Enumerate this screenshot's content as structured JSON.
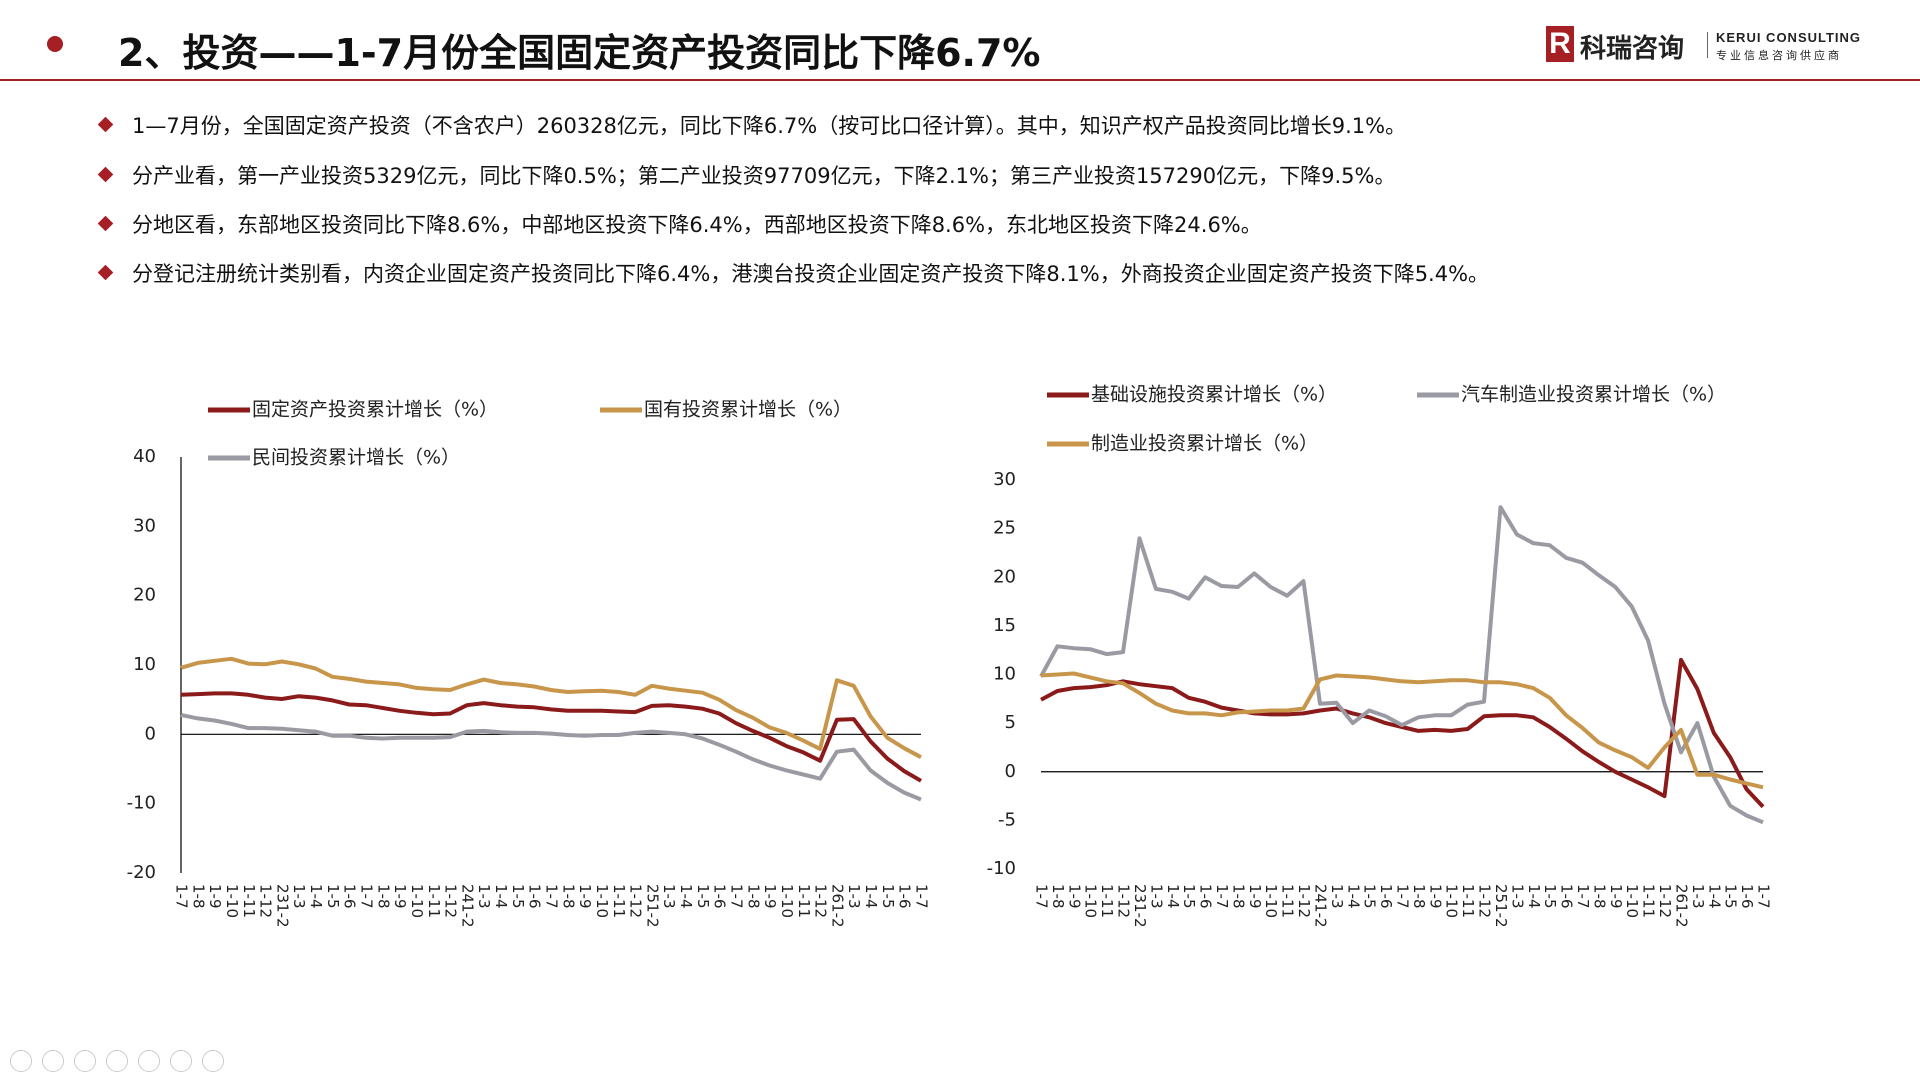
{
  "header": {
    "title": "2、投资——1-7月份全国固定资产投资同比下降6.7%",
    "logo_name": "科瑞咨询",
    "logo_en": "KERUI CONSULTING",
    "logo_tagline": "专业信息咨询供应商"
  },
  "bullets": [
    "1—7月份，全国固定资产投资（不含农户）260328亿元，同比下降6.7%（按可比口径计算）。其中，知识产权产品投资同比增长9.1%。",
    "分产业看，第一产业投资5329亿元，同比下降0.5%；第二产业投资97709亿元，下降2.1%；第三产业投资157290亿元，下降9.5%。",
    "分地区看，东部地区投资同比下降8.6%，中部地区投资下降6.4%，西部地区投资下降8.6%，东北地区投资下降24.6%。",
    "分登记注册统计类别看，内资企业固定资产投资同比下降6.4%，港澳台投资企业固定资产投资下降8.1%，外商投资企业固定资产投资下降5.4%。"
  ],
  "chart_data": [
    {
      "type": "line",
      "categories": [
        "1-7",
        "1-8",
        "1-9",
        "1-10",
        "1-11",
        "1-12",
        "231-2",
        "1-3",
        "1-4",
        "1-5",
        "1-6",
        "1-7",
        "1-8",
        "1-9",
        "1-10",
        "1-11",
        "1-12",
        "241-2",
        "1-3",
        "1-4",
        "1-5",
        "1-6",
        "1-7",
        "1-8",
        "1-9",
        "1-10",
        "1-11",
        "1-12",
        "251-2",
        "1-3",
        "1-4",
        "1-5",
        "1-6",
        "1-7",
        "1-8",
        "1-9",
        "1-10",
        "1-11",
        "1-12",
        "261-2",
        "1-3",
        "1-4",
        "1-5",
        "1-6",
        "1-7"
      ],
      "ylim": [
        -20,
        40
      ],
      "yticks": [
        -20,
        -10,
        0,
        10,
        20,
        30,
        40
      ],
      "series": [
        {
          "name": "固定资产投资累计增长（%）",
          "color": "#8b1a1a",
          "values": [
            5.7,
            5.8,
            5.9,
            5.9,
            5.7,
            5.3,
            5.1,
            5.5,
            5.3,
            4.9,
            4.3,
            4.2,
            3.8,
            3.4,
            3.1,
            2.9,
            3.0,
            4.2,
            4.5,
            4.2,
            4.0,
            3.9,
            3.6,
            3.4,
            3.4,
            3.4,
            3.3,
            3.2,
            4.1,
            4.2,
            4.0,
            3.7,
            3.0,
            1.6,
            0.5,
            -0.5,
            -1.7,
            -2.6,
            -3.8,
            2.1,
            2.2,
            -1.0,
            -3.5,
            -5.3,
            -6.7
          ]
        },
        {
          "name": "国有投资累计增长（%）",
          "color": "#c8964a",
          "values": [
            9.6,
            10.3,
            10.6,
            10.9,
            10.2,
            10.1,
            10.5,
            10.1,
            9.5,
            8.3,
            8.0,
            7.6,
            7.4,
            7.2,
            6.7,
            6.5,
            6.4,
            7.2,
            7.9,
            7.4,
            7.2,
            6.9,
            6.4,
            6.1,
            6.2,
            6.3,
            6.1,
            5.7,
            7.0,
            6.6,
            6.3,
            6.0,
            5.0,
            3.5,
            2.4,
            1.0,
            0.2,
            -0.9,
            -2.1,
            7.8,
            7.0,
            2.6,
            -0.5,
            -2.0,
            -3.3
          ]
        },
        {
          "name": "民间投资累计增长（%）",
          "color": "#9a9aa2",
          "values": [
            2.8,
            2.3,
            2.0,
            1.5,
            0.9,
            0.9,
            0.8,
            0.6,
            0.4,
            -0.2,
            -0.2,
            -0.5,
            -0.6,
            -0.5,
            -0.5,
            -0.5,
            -0.4,
            0.4,
            0.5,
            0.3,
            0.2,
            0.2,
            0.1,
            -0.1,
            -0.2,
            -0.1,
            -0.1,
            0.2,
            0.4,
            0.2,
            0.0,
            -0.6,
            -1.5,
            -2.5,
            -3.6,
            -4.5,
            -5.2,
            -5.8,
            -6.4,
            -2.5,
            -2.2,
            -5.2,
            -7.0,
            -8.4,
            -9.4
          ]
        }
      ]
    },
    {
      "type": "line",
      "categories": [
        "1-7",
        "1-8",
        "1-9",
        "1-10",
        "1-11",
        "1-12",
        "231-2",
        "1-3",
        "1-4",
        "1-5",
        "1-6",
        "1-7",
        "1-8",
        "1-9",
        "1-10",
        "1-11",
        "1-12",
        "241-2",
        "1-3",
        "1-4",
        "1-5",
        "1-6",
        "1-7",
        "1-8",
        "1-9",
        "1-10",
        "1-11",
        "1-12",
        "251-2",
        "1-3",
        "1-4",
        "1-5",
        "1-6",
        "1-7",
        "1-8",
        "1-9",
        "1-10",
        "1-11",
        "1-12",
        "261-2",
        "1-3",
        "1-4",
        "1-5",
        "1-6",
        "1-7"
      ],
      "ylim": [
        -10,
        30
      ],
      "yticks": [
        -10,
        -5,
        0,
        5,
        10,
        15,
        20,
        25,
        30
      ],
      "series": [
        {
          "name": "基础设施投资累计增长（%）",
          "color": "#8b1a1a",
          "values": [
            7.4,
            8.3,
            8.6,
            8.7,
            8.9,
            9.3,
            9.0,
            8.8,
            8.6,
            7.6,
            7.2,
            6.6,
            6.3,
            6.0,
            5.9,
            5.9,
            6.0,
            6.3,
            6.5,
            6.0,
            5.6,
            5.0,
            4.6,
            4.2,
            4.3,
            4.2,
            4.4,
            5.7,
            5.8,
            5.8,
            5.6,
            4.6,
            3.4,
            2.1,
            1.0,
            0.0,
            -0.8,
            -1.6,
            -2.5,
            11.5,
            8.5,
            4.0,
            1.5,
            -1.8,
            -3.6
          ]
        },
        {
          "name": "汽车制造业投资累计增长（%）",
          "color": "#9a9aa2",
          "values": [
            9.8,
            12.9,
            12.7,
            12.6,
            12.1,
            12.3,
            24.0,
            18.8,
            18.5,
            17.8,
            20.0,
            19.1,
            19.0,
            20.4,
            19.0,
            18.1,
            19.6,
            7.0,
            7.1,
            5.0,
            6.3,
            5.7,
            4.8,
            5.6,
            5.8,
            5.8,
            6.9,
            7.2,
            27.2,
            24.4,
            23.5,
            23.3,
            22.0,
            21.5,
            20.2,
            19.0,
            17.0,
            13.5,
            7.0,
            2.0,
            5.0,
            -0.5,
            -3.5,
            -4.5,
            -5.2
          ]
        },
        {
          "name": "制造业投资累计增长（%）",
          "color": "#c8964a",
          "values": [
            9.9,
            10.0,
            10.1,
            9.7,
            9.3,
            9.1,
            8.1,
            7.0,
            6.3,
            6.0,
            6.0,
            5.8,
            6.1,
            6.2,
            6.3,
            6.3,
            6.5,
            9.5,
            9.9,
            9.8,
            9.7,
            9.5,
            9.3,
            9.2,
            9.3,
            9.4,
            9.4,
            9.2,
            9.2,
            9.0,
            8.6,
            7.6,
            5.8,
            4.5,
            3.0,
            2.2,
            1.5,
            0.4,
            2.5,
            4.3,
            -0.3,
            -0.3,
            -0.8,
            -1.2,
            -1.6
          ]
        }
      ]
    }
  ]
}
